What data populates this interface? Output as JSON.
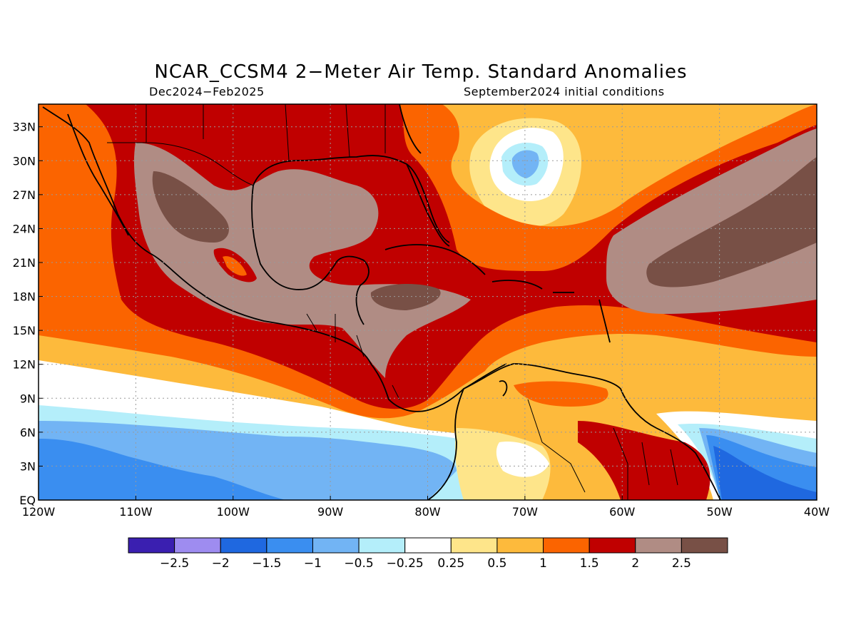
{
  "title": "NCAR_CCSM4 2−Meter Air Temp. Standard Anomalies",
  "subtitle_left": "Dec2024−Feb2025",
  "subtitle_right": "September2024 initial conditions",
  "map": {
    "lat_labels": [
      "33N",
      "30N",
      "27N",
      "24N",
      "21N",
      "18N",
      "15N",
      "12N",
      "9N",
      "6N",
      "3N",
      "EQ"
    ],
    "lon_labels": [
      "120W",
      "110W",
      "100W",
      "90W",
      "80W",
      "70W",
      "60W",
      "50W",
      "40W"
    ],
    "lat_range": [
      0,
      35
    ],
    "lon_range": [
      -120,
      -40
    ],
    "grid": "dotted"
  },
  "legend": {
    "colors": [
      "#3a1fb0",
      "#9e8cf0",
      "#1f68e0",
      "#3a8ef0",
      "#72b4f4",
      "#b4eefa",
      "#ffffff",
      "#fee58a",
      "#fdba3c",
      "#fb6400",
      "#c00000",
      "#b08c84",
      "#785046"
    ],
    "labels": [
      "−2.5",
      "−2",
      "−1.5",
      "−1",
      "−0.5",
      "−0.25",
      "0.25",
      "0.5",
      "1",
      "1.5",
      "2",
      "2.5"
    ]
  }
}
